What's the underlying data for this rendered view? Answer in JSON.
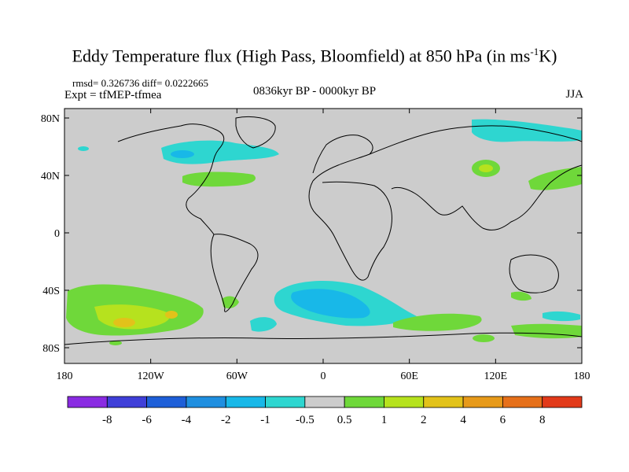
{
  "title": "Eddy Temperature flux (High Pass, Bloomfield) at 850 hPa (in ms",
  "title_sup": "-1",
  "title_end": "K)",
  "stats": "rmsd= 0.326736 diff= 0.0222665",
  "expt": "Expt = tfMEP-tfmea",
  "period": "0836kyr BP - 0000kyr BP",
  "season": "JJA",
  "axes": {
    "lat_labels": [
      "80N",
      "40N",
      "0",
      "40S",
      "80S"
    ],
    "lon_labels": [
      "180",
      "120W",
      "60W",
      "0",
      "60E",
      "120E",
      "180"
    ]
  },
  "colorbar": {
    "colors": [
      "#8a2be2",
      "#3f3fd8",
      "#1e5fd8",
      "#1f8fe0",
      "#18b8e8",
      "#2ed6d0",
      "#cccccc",
      "#6fd83a",
      "#b6e21e",
      "#e2c21a",
      "#e79a1a",
      "#e6701a",
      "#e23a1a"
    ],
    "labels": [
      "-8",
      "-6",
      "-4",
      "-2",
      "-1",
      "-0.5",
      "0.5",
      "1",
      "2",
      "4",
      "6",
      "8"
    ]
  },
  "colors": {
    "background": "#cccccc",
    "negative_small": "#2ed6d0",
    "negative": "#18b8e8",
    "positive_small": "#6fd83a",
    "positive": "#b6e21e",
    "positive_mid": "#e2c21a"
  }
}
